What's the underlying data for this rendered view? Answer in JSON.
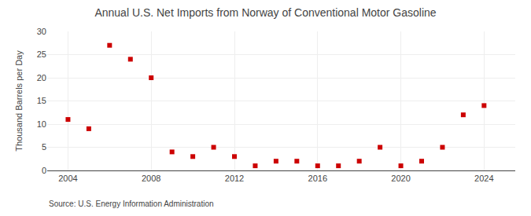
{
  "chart_data": {
    "type": "scatter",
    "title": "Annual U.S. Net Imports from Norway of Conventional Motor Gasoline",
    "y_label": "Thousand Barrels per Day",
    "annotations": [
      "Source: U.S. Energy Information Administration"
    ],
    "x": [
      2004,
      2005,
      2006,
      2007,
      2008,
      2009,
      2010,
      2011,
      2012,
      2013,
      2014,
      2015,
      2016,
      2017,
      2018,
      2019,
      2020,
      2021,
      2022,
      2023,
      2024
    ],
    "values": [
      11,
      9,
      27,
      24,
      20,
      4,
      3,
      5,
      3,
      1,
      2,
      2,
      1,
      1,
      2,
      5,
      1,
      2,
      5,
      12,
      14
    ],
    "color": "#cc0000",
    "marker": "square",
    "xlim": [
      2003.0,
      2025.5
    ],
    "xticks": [
      2004,
      2008,
      2012,
      2016,
      2020,
      2024
    ],
    "ylim": [
      0,
      30
    ],
    "yticks": [
      0,
      5,
      10,
      15,
      20,
      25,
      30
    ],
    "grid": true
  }
}
